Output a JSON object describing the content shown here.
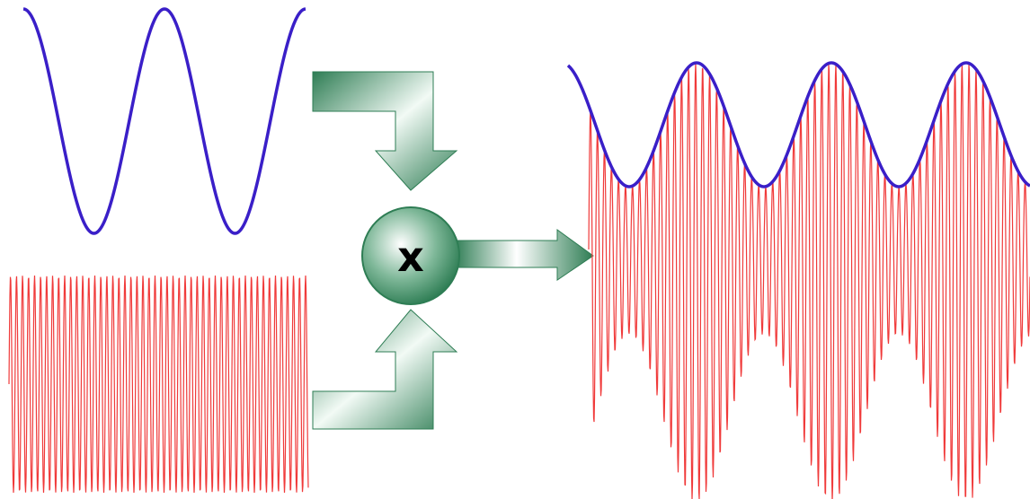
{
  "diagram": {
    "operator_symbol": "x",
    "colors": {
      "modulating_wave": "#3a1fc8",
      "carrier_wave": "#f03a3a",
      "arrow_dark": "#2e7d54",
      "arrow_light": "#ffffff"
    },
    "icons": {
      "top_arrow": "bent-arrow-down-icon",
      "bottom_arrow": "bent-arrow-up-icon",
      "output_arrow": "arrow-right-icon",
      "operator": "multiply-circle-icon"
    }
  }
}
